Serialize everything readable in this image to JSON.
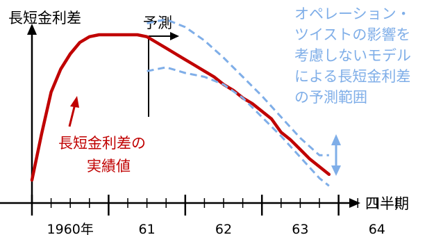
{
  "chart_data": {
    "type": "line",
    "ylabel": "長短金利差",
    "xlabel": "四半期",
    "forecast_label": "予測",
    "x_tick_labels": [
      "1960年",
      "61",
      "62",
      "63",
      "64"
    ],
    "quarters_per_year": 4,
    "forecast_start_quarter": 6,
    "series": [
      {
        "name": "長短金利差の実績値",
        "color": "#c00000",
        "style": "solid",
        "points": [
          [
            0,
            0.12
          ],
          [
            0.5,
            0.36
          ],
          [
            1,
            0.58
          ],
          [
            1.5,
            0.7
          ],
          [
            2,
            0.78
          ],
          [
            2.5,
            0.84
          ],
          [
            3,
            0.87
          ],
          [
            3.5,
            0.88
          ],
          [
            4,
            0.88
          ],
          [
            4.5,
            0.88
          ],
          [
            5,
            0.88
          ],
          [
            5.5,
            0.88
          ],
          [
            6,
            0.87
          ],
          [
            6.5,
            0.84
          ],
          [
            7,
            0.81
          ],
          [
            7.5,
            0.78
          ],
          [
            8,
            0.75
          ],
          [
            8.5,
            0.72
          ],
          [
            9,
            0.69
          ],
          [
            9.5,
            0.66
          ],
          [
            10,
            0.62
          ],
          [
            10.5,
            0.59
          ],
          [
            11,
            0.55
          ],
          [
            11.5,
            0.52
          ],
          [
            12,
            0.48
          ],
          [
            12.5,
            0.44
          ],
          [
            13,
            0.37
          ],
          [
            13.5,
            0.33
          ],
          [
            14,
            0.28
          ],
          [
            14.5,
            0.23
          ],
          [
            15,
            0.19
          ],
          [
            15.5,
            0.15
          ]
        ]
      },
      {
        "name": "upper-band",
        "color": "#7faee8",
        "style": "dashed",
        "points": [
          [
            6,
            0.94
          ],
          [
            7,
            0.96
          ],
          [
            8,
            0.92
          ],
          [
            9,
            0.85
          ],
          [
            10,
            0.76
          ],
          [
            11,
            0.66
          ],
          [
            12,
            0.56
          ],
          [
            13,
            0.45
          ],
          [
            14,
            0.34
          ],
          [
            15,
            0.25
          ],
          [
            15.5,
            0.25
          ]
        ]
      },
      {
        "name": "lower-band",
        "color": "#7faee8",
        "style": "dashed",
        "points": [
          [
            6,
            0.69
          ],
          [
            7,
            0.71
          ],
          [
            8,
            0.68
          ],
          [
            9,
            0.66
          ],
          [
            10,
            0.62
          ],
          [
            11,
            0.55
          ],
          [
            12,
            0.45
          ],
          [
            13,
            0.35
          ],
          [
            14,
            0.24
          ],
          [
            15,
            0.13
          ],
          [
            15.5,
            0.09
          ]
        ]
      }
    ],
    "annotations": {
      "actual_label_line1": "長短金利差の",
      "actual_label_line2": "実績値",
      "band_label": [
        "オペレーション・",
        "ツイストの影響を",
        "考慮しないモデル",
        "による長短金利差",
        "の予測範囲"
      ]
    },
    "colors": {
      "actual": "#c00000",
      "band": "#7faee8",
      "axis": "#000000"
    }
  }
}
